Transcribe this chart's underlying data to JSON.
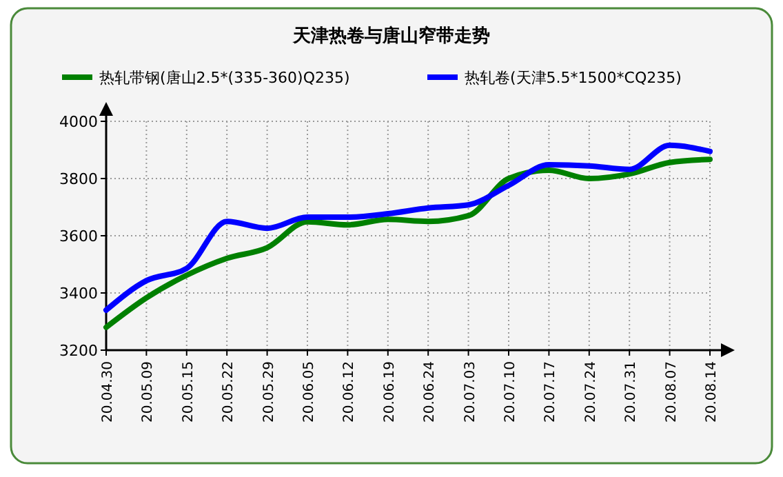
{
  "chart_data": {
    "type": "line",
    "title": "天津热卷与唐山窄带走势",
    "categories": [
      "20.04.30",
      "20.05.09",
      "20.05.15",
      "20.05.22",
      "20.05.29",
      "20.06.05",
      "20.06.12",
      "20.06.19",
      "20.06.24",
      "20.07.03",
      "20.07.10",
      "20.07.17",
      "20.07.24",
      "20.07.31",
      "20.08.07",
      "20.08.14"
    ],
    "series": [
      {
        "name": "热轧带钢(唐山2.5*(335-360)Q235)",
        "color": "#008000",
        "values": [
          3280,
          3383,
          3462,
          3521,
          3558,
          3649,
          3638,
          3657,
          3650,
          3670,
          3800,
          3829,
          3800,
          3816,
          3856,
          3867
        ]
      },
      {
        "name": "热轧卷(天津5.5*1500*CQ235)",
        "color": "#0000ff",
        "values": [
          3340,
          3443,
          3486,
          3650,
          3626,
          3665,
          3665,
          3677,
          3697,
          3708,
          3776,
          3848,
          3844,
          3832,
          3916,
          3895
        ]
      }
    ],
    "ylim": [
      3200,
      4000
    ],
    "yticks": [
      3200,
      3400,
      3600,
      3800,
      4000
    ],
    "grid": true,
    "legend": "top",
    "marker": "none",
    "line_style": "solid"
  }
}
